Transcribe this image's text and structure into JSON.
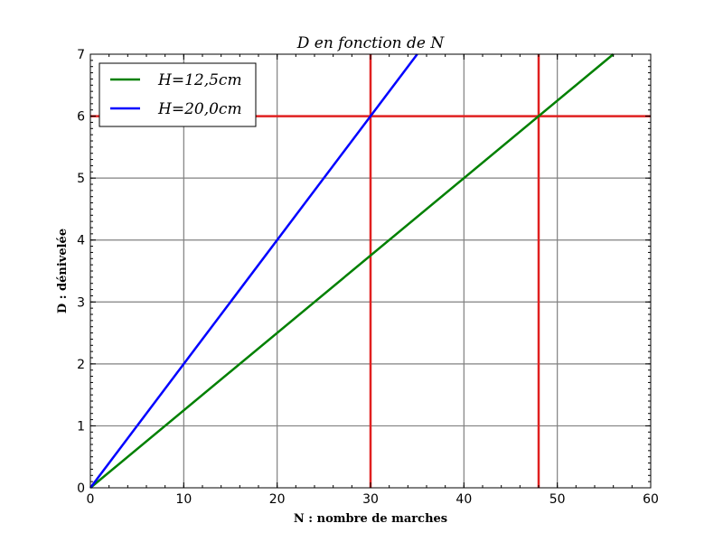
{
  "chart_data": {
    "type": "line",
    "title": "D en fonction de N",
    "xlabel": "N : nombre de marches",
    "ylabel": "D : dénivelée",
    "xlim": [
      0,
      60
    ],
    "ylim": [
      0,
      7
    ],
    "xticks": [
      0,
      10,
      20,
      30,
      40,
      50,
      60
    ],
    "yticks": [
      0,
      1,
      2,
      3,
      4,
      5,
      6,
      7
    ],
    "grid": true,
    "legend_position": "top-left",
    "series": [
      {
        "name": "H=12,5cm",
        "color": "#008000",
        "x": [
          0,
          56
        ],
        "y": [
          0,
          7
        ]
      },
      {
        "name": "H=20,0cm",
        "color": "#0000ff",
        "x": [
          0,
          35
        ],
        "y": [
          0,
          7
        ]
      }
    ],
    "reference_lines": [
      {
        "orientation": "horizontal",
        "value": 6,
        "color": "#e02020"
      },
      {
        "orientation": "vertical",
        "value": 30,
        "color": "#e02020"
      },
      {
        "orientation": "vertical",
        "value": 48,
        "color": "#e02020"
      }
    ]
  }
}
